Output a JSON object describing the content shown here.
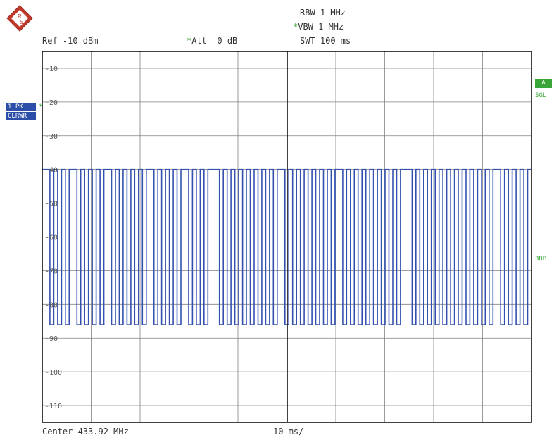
{
  "header": {
    "rbw": "RBW 1 MHz",
    "vbw": "VBW 1 MHz",
    "swt": "SWT 100 ms",
    "ref": "Ref -10 dBm",
    "att": "Att",
    "att_value": "0 dB"
  },
  "star": "*",
  "trace": {
    "pk": "1 PK",
    "clrwr": "CLRWR"
  },
  "right_tags": {
    "a": "A",
    "sgl": "SGL",
    "db3": "3DB"
  },
  "footer": {
    "center": "Center 433.92 MHz",
    "span": "10 ms/"
  },
  "y_labels": [
    "-10",
    "-20",
    "-30",
    "-40",
    "-50",
    "-60",
    "-70",
    "-80",
    "-90",
    "-100",
    "-110"
  ],
  "colors": {
    "trace": "#3551b0",
    "grid": "#808080",
    "frame": "#000000",
    "accent": "#3aa63a",
    "trace_label_bg": "#2c4ea8"
  },
  "chart_data": {
    "type": "line",
    "series": [
      {
        "name": "1 PK CLRWR",
        "description_free": true,
        "high_level_dbm": -40,
        "low_level_dbm": -86,
        "values": [
          -40,
          -40,
          -86,
          -40,
          -86,
          -40,
          -86,
          -40,
          -40,
          -86,
          -40,
          -86,
          -40,
          -86,
          -40,
          -86,
          -40,
          -40,
          -86,
          -40,
          -86,
          -40,
          -86,
          -40,
          -86,
          -40,
          -86,
          -40,
          -40,
          -86,
          -40,
          -86,
          -40,
          -86,
          -40,
          -86,
          -40,
          -40,
          -86,
          -40,
          -86,
          -40,
          -86,
          -40,
          -40,
          -40,
          -86,
          -40,
          -86,
          -40,
          -86,
          -40,
          -86,
          -40,
          -86,
          -40,
          -86,
          -40,
          -86,
          -40,
          -86,
          -40,
          -40,
          -86,
          -40,
          -86,
          -40,
          -86,
          -40,
          -86,
          -40,
          -86,
          -40,
          -86,
          -40,
          -86,
          -40,
          -40,
          -86,
          -40,
          -86,
          -40,
          -86,
          -40,
          -86,
          -40,
          -86,
          -40,
          -86,
          -40,
          -86,
          -40,
          -86,
          -40,
          -40,
          -40,
          -86,
          -40,
          -86,
          -40,
          -86,
          -40,
          -86,
          -40,
          -86,
          -40,
          -86,
          -40,
          -86,
          -40,
          -86,
          -40,
          -86,
          -40,
          -86,
          -40,
          -86,
          -40,
          -40,
          -86,
          -40,
          -86,
          -40,
          -86,
          -40,
          -86,
          -40
        ]
      }
    ],
    "x_range_ms": [
      0,
      100
    ],
    "ylim": [
      -115,
      -5
    ],
    "grid": true
  }
}
